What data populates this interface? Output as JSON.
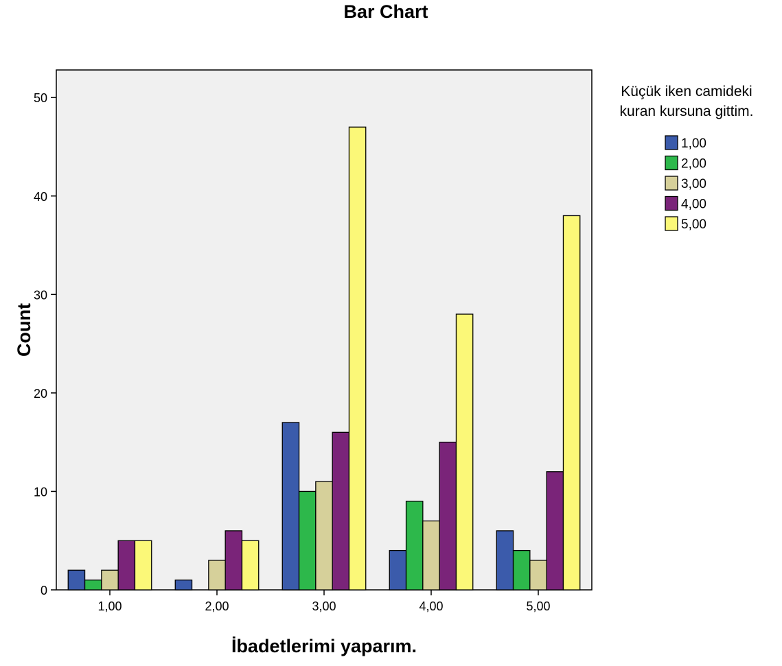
{
  "chart_data": {
    "type": "bar",
    "title": "Bar Chart",
    "xlabel": "İbadetlerimi yaparım.",
    "ylabel": "Count",
    "categories": [
      "1,00",
      "2,00",
      "3,00",
      "4,00",
      "5,00"
    ],
    "ylim": [
      0,
      52.8
    ],
    "yticks": [
      0,
      10,
      20,
      30,
      40,
      50
    ],
    "grid": false,
    "background_color": "#f0f0f0",
    "legend": {
      "title_lines": [
        "Küçük iken camideki",
        "kuran kursuna gittim."
      ],
      "placement": "right"
    },
    "series": [
      {
        "name": "1,00",
        "color": "#3b5bab",
        "values": [
          2,
          1,
          17,
          4,
          6
        ]
      },
      {
        "name": "2,00",
        "color": "#2db84b",
        "values": [
          1,
          0,
          10,
          9,
          4
        ]
      },
      {
        "name": "3,00",
        "color": "#d6d09a",
        "values": [
          2,
          3,
          11,
          7,
          3
        ]
      },
      {
        "name": "4,00",
        "color": "#7a2479",
        "values": [
          5,
          6,
          16,
          15,
          12
        ]
      },
      {
        "name": "5,00",
        "color": "#fbf878",
        "values": [
          5,
          5,
          47,
          28,
          38
        ]
      }
    ]
  }
}
